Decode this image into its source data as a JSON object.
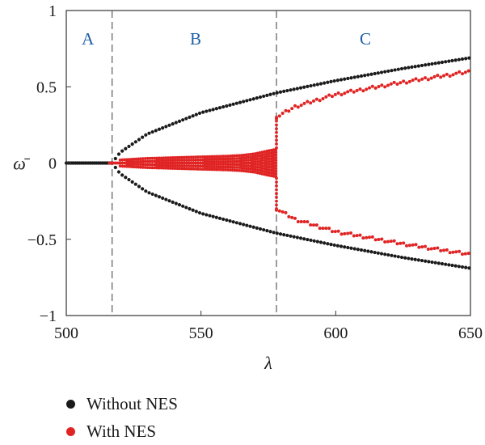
{
  "chart_data": {
    "type": "scatter",
    "xlabel": "λ",
    "ylabel": "ω̄",
    "xlim": [
      500,
      650
    ],
    "ylim": [
      -1,
      1
    ],
    "xticks": [
      500,
      550,
      600,
      650
    ],
    "yticks": [
      1,
      0.5,
      0,
      -0.5,
      -1
    ],
    "ytick_labels": [
      "1",
      "0.5",
      "0",
      "−0.5",
      "−1"
    ],
    "xtick_labels": [
      "500",
      "550",
      "600",
      "650"
    ],
    "vlines": [
      517,
      578
    ],
    "regions": [
      {
        "label": "A",
        "x": 508
      },
      {
        "label": "B",
        "x": 548
      },
      {
        "label": "C",
        "x": 611
      }
    ],
    "series": [
      {
        "name": "Without NES",
        "color": "#1a1a1a",
        "branches": [
          {
            "x": [
              500,
              517
            ],
            "y": [
              0,
              0
            ]
          },
          {
            "x": [
              517,
              520,
              530,
              550,
              578,
              600,
              625,
              650
            ],
            "y": [
              0,
              0.07,
              0.19,
              0.33,
              0.46,
              0.54,
              0.62,
              0.69
            ]
          },
          {
            "x": [
              517,
              520,
              530,
              550,
              578,
              600,
              625,
              650
            ],
            "y": [
              0,
              -0.07,
              -0.19,
              -0.33,
              -0.46,
              -0.54,
              -0.62,
              -0.69
            ]
          }
        ]
      },
      {
        "name": "With NES",
        "color": "#e02424",
        "branches": [
          {
            "x": [
              517,
              578
            ],
            "y": [
              0,
              0
            ]
          },
          {
            "x": [
              578,
              585,
              600,
              625,
              650
            ],
            "y": [
              0.3,
              0.37,
              0.45,
              0.53,
              0.6
            ]
          },
          {
            "x": [
              578,
              585,
              600,
              625,
              650
            ],
            "y": [
              -0.3,
              -0.37,
              -0.45,
              -0.53,
              -0.6
            ]
          }
        ],
        "oscillation_band": {
          "x": [
            520,
            530,
            540,
            550,
            560,
            565,
            570,
            575,
            578
          ],
          "amplitude": [
            0.02,
            0.03,
            0.035,
            0.04,
            0.045,
            0.05,
            0.06,
            0.08,
            0.09
          ]
        }
      }
    ],
    "legend": [
      {
        "label": "Without NES",
        "color": "#1a1a1a"
      },
      {
        "label": "With NES",
        "color": "#e02424"
      }
    ]
  }
}
